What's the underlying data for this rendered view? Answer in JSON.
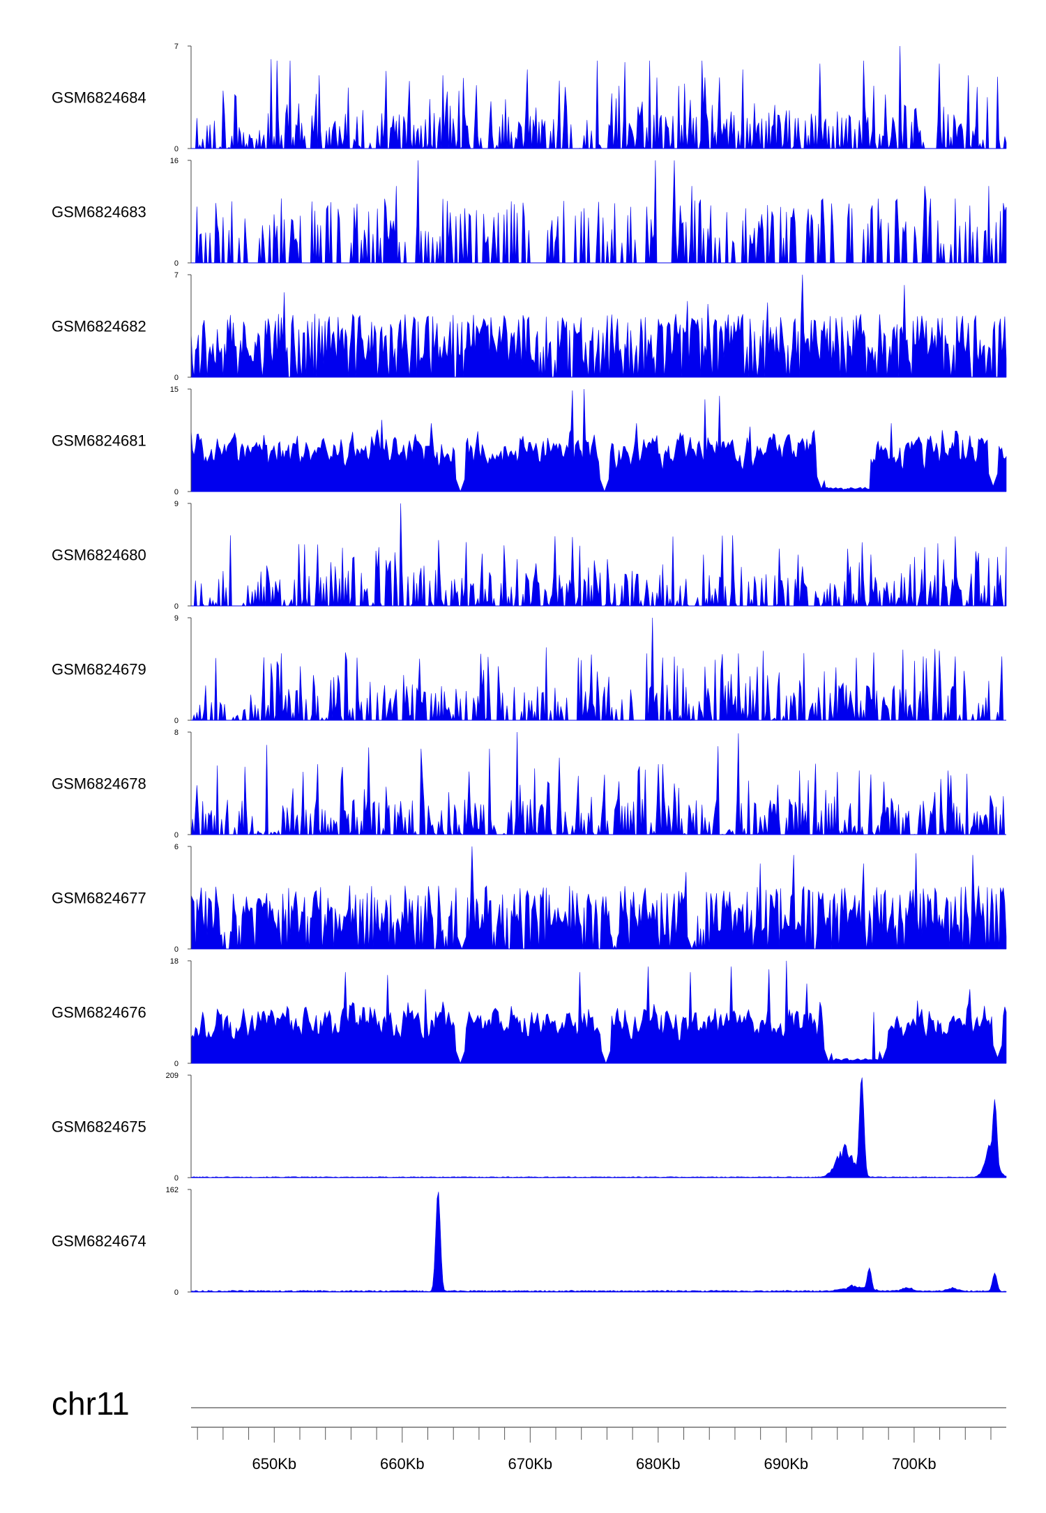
{
  "chart_data": {
    "type": "area",
    "chromosome": "chr11",
    "xlim_kb": [
      643.5,
      707.2
    ],
    "x_ticks": [
      {
        "kb": 650,
        "label": "650Kb"
      },
      {
        "kb": 660,
        "label": "660Kb"
      },
      {
        "kb": 670,
        "label": "670Kb"
      },
      {
        "kb": 680,
        "label": "680Kb"
      },
      {
        "kb": 690,
        "label": "690Kb"
      },
      {
        "kb": 700,
        "label": "700Kb"
      }
    ],
    "minor_tick_step_kb": 2,
    "fill_color": "#0000ee",
    "tracks": [
      {
        "name": "GSM6824684",
        "ymax": 7,
        "ymin": 0,
        "profile": "sparse",
        "seed": 11,
        "peaks": [
          [
            649.7,
            6.1
          ],
          [
            650.2,
            6.0
          ],
          [
            651.2,
            6.0
          ],
          [
            653.5,
            5.0
          ],
          [
            658.7,
            5.3
          ],
          [
            663.2,
            5.0
          ],
          [
            669.8,
            5.4
          ],
          [
            675.2,
            6.0
          ],
          [
            677.4,
            5.9
          ],
          [
            679.3,
            6.0
          ],
          [
            683.4,
            6.0
          ],
          [
            686.6,
            5.4
          ],
          [
            692.6,
            5.8
          ],
          [
            696.1,
            6.0
          ],
          [
            698.9,
            7.0
          ],
          [
            702.0,
            5.8
          ],
          [
            704.2,
            5.0
          ],
          [
            706.5,
            4.9
          ]
        ]
      },
      {
        "name": "GSM6824683",
        "ymax": 16,
        "ymin": 0,
        "profile": "spiky",
        "seed": 23,
        "peaks": [
          [
            659.5,
            12.0
          ],
          [
            661.2,
            16.0
          ],
          [
            679.8,
            16.0
          ],
          [
            681.3,
            16.0
          ],
          [
            682.6,
            12.0
          ],
          [
            700.8,
            12.0
          ],
          [
            705.8,
            12.0
          ],
          [
            707.1,
            8.0
          ]
        ]
      },
      {
        "name": "GSM6824682",
        "ymax": 7,
        "ymin": 0,
        "profile": "dense",
        "seed": 37,
        "peaks": [
          [
            650.8,
            5.8
          ],
          [
            663.8,
            3.8
          ],
          [
            677.9,
            3.2
          ],
          [
            682.3,
            5.2
          ],
          [
            683.9,
            5.0
          ],
          [
            688.5,
            5.1
          ],
          [
            691.3,
            7.0
          ],
          [
            699.2,
            6.3
          ],
          [
            706.8,
            4.0
          ]
        ]
      },
      {
        "name": "GSM6824681",
        "ymax": 15,
        "ymin": 0,
        "profile": "broad",
        "seed": 41,
        "peaks": [
          [
            658.4,
            10.5
          ],
          [
            662.3,
            10.0
          ],
          [
            673.3,
            14.8
          ],
          [
            674.2,
            15.0
          ],
          [
            678.3,
            10.0
          ],
          [
            683.6,
            13.5
          ],
          [
            684.8,
            14.0
          ],
          [
            687.2,
            9.5
          ],
          [
            698.2,
            10.0
          ],
          [
            702.2,
            9.0
          ]
        ],
        "dips": [
          [
            664.6,
            0.0
          ],
          [
            675.8,
            0.0
          ],
          [
            692.8,
            0.4
          ],
          [
            696.0,
            0.5
          ],
          [
            706.2,
            0.8
          ]
        ],
        "lows": [
          [
            693.0,
            696.6
          ]
        ]
      },
      {
        "name": "GSM6824680",
        "ymax": 9,
        "ymin": 0,
        "profile": "sparse",
        "seed": 53,
        "peaks": [
          [
            646.6,
            6.2
          ],
          [
            656.2,
            4.3
          ],
          [
            659.9,
            9.0
          ],
          [
            675.0,
            4.0
          ],
          [
            683.5,
            4.5
          ],
          [
            685.8,
            6.2
          ],
          [
            690.9,
            4.5
          ],
          [
            700.0,
            4.3
          ],
          [
            701.9,
            5.5
          ],
          [
            706.5,
            4.3
          ]
        ]
      },
      {
        "name": "GSM6824679",
        "ymax": 9,
        "ymin": 0,
        "profile": "sparse",
        "seed": 67,
        "peaks": [
          [
            656.5,
            5.5
          ],
          [
            661.4,
            5.4
          ],
          [
            671.3,
            6.4
          ],
          [
            673.8,
            5.5
          ],
          [
            679.6,
            9.0
          ],
          [
            680.3,
            5.5
          ],
          [
            685.0,
            5.8
          ],
          [
            689.5,
            4.2
          ],
          [
            699.1,
            6.2
          ],
          [
            703.2,
            5.6
          ],
          [
            706.9,
            5.6
          ]
        ]
      },
      {
        "name": "GSM6824678",
        "ymax": 8,
        "ymin": 0,
        "profile": "sparse",
        "seed": 71,
        "peaks": [
          [
            649.4,
            7.0
          ],
          [
            657.4,
            6.8
          ],
          [
            661.5,
            6.7
          ],
          [
            666.8,
            6.7
          ],
          [
            669.0,
            8.0
          ],
          [
            672.3,
            6.0
          ],
          [
            680.3,
            5.5
          ],
          [
            684.7,
            6.9
          ],
          [
            686.3,
            7.9
          ],
          [
            691.0,
            5.0
          ],
          [
            695.7,
            5.0
          ],
          [
            702.6,
            5.0
          ],
          [
            707.0,
            3.0
          ]
        ],
        "lows": [
          [
            648.5,
            650.0
          ],
          [
            667.0,
            668.0
          ],
          [
            685.0,
            686.0
          ]
        ]
      },
      {
        "name": "GSM6824677",
        "ymax": 6,
        "ymin": 0,
        "profile": "dense",
        "seed": 83,
        "peaks": [
          [
            665.4,
            6.0
          ],
          [
            682.2,
            4.5
          ],
          [
            688.0,
            5.0
          ],
          [
            690.6,
            5.5
          ],
          [
            696.0,
            5.0
          ],
          [
            700.2,
            5.6
          ],
          [
            704.6,
            5.5
          ]
        ],
        "dips": [
          [
            664.7,
            0.0
          ],
          [
            676.6,
            0.2
          ],
          [
            682.6,
            0.0
          ]
        ]
      },
      {
        "name": "GSM6824676",
        "ymax": 18,
        "ymin": 0,
        "profile": "broad",
        "seed": 97,
        "peaks": [
          [
            655.6,
            16.0
          ],
          [
            658.9,
            15.5
          ],
          [
            661.8,
            13.0
          ],
          [
            673.9,
            16.0
          ],
          [
            679.2,
            17.0
          ],
          [
            682.5,
            16.0
          ],
          [
            685.7,
            17.0
          ],
          [
            688.7,
            16.5
          ],
          [
            690.0,
            18.0
          ],
          [
            691.6,
            14.0
          ],
          [
            696.9,
            9.0
          ],
          [
            700.3,
            11.0
          ],
          [
            704.3,
            13.0
          ]
        ],
        "dips": [
          [
            664.6,
            0.0
          ],
          [
            675.9,
            0.0
          ],
          [
            693.3,
            0.3
          ],
          [
            694.9,
            0.5
          ],
          [
            697.5,
            0.6
          ],
          [
            706.5,
            1.0
          ]
        ],
        "lows": [
          [
            693.6,
            697.2
          ]
        ]
      },
      {
        "name": "GSM6824675",
        "ymax": 209,
        "ymin": 0,
        "profile": "flat",
        "seed": 101,
        "peaks": [
          [
            695.9,
            209
          ],
          [
            706.3,
            160
          ]
        ],
        "broad_peaks": [
          [
            694.6,
            70,
            0.9
          ],
          [
            706.0,
            80,
            0.6
          ]
        ],
        "baseline": 1.5
      },
      {
        "name": "GSM6824674",
        "ymax": 162,
        "ymin": 0,
        "profile": "flat",
        "seed": 113,
        "peaks": [
          [
            662.8,
            162
          ],
          [
            696.5,
            38
          ],
          [
            706.3,
            30
          ]
        ],
        "broad_peaks": [
          [
            695.5,
            10,
            1.2
          ],
          [
            699.5,
            6,
            0.6
          ],
          [
            703.0,
            6,
            0.6
          ]
        ],
        "baseline": 2.0
      }
    ]
  }
}
